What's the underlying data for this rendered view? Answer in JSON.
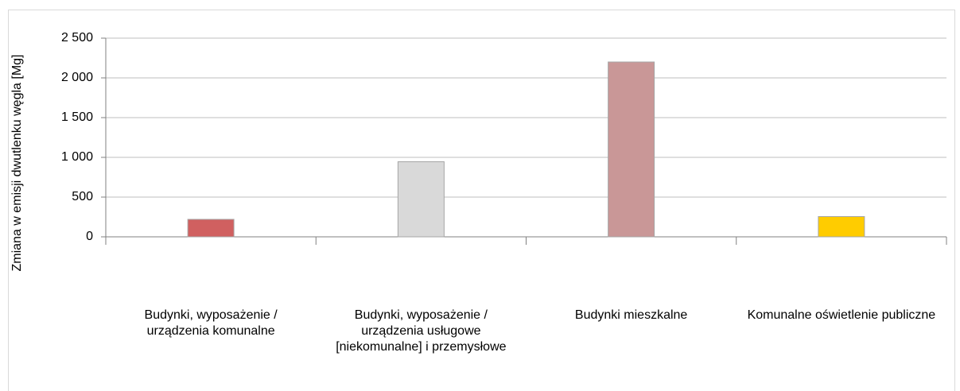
{
  "chart_data": {
    "type": "bar",
    "y_axis_label": "Zmiana w emisji dwutlenku węgla [Mg]",
    "categories": [
      "Budynki, wyposażenie / urządzenia komunalne",
      "Budynki, wyposażenie / urządzenia usługowe [niekomunalne] i przemysłowe",
      "Budynki mieszkalne",
      "Komunalne oświetlenie publiczne"
    ],
    "values": [
      220,
      945,
      2200,
      255
    ],
    "colors": [
      "#d06060",
      "#d9d9d9",
      "#c99797",
      "#ffcc00"
    ],
    "ylim": [
      0,
      2500
    ],
    "yticks": [
      0,
      500,
      {
        "value": 1000,
        "label": "1 000"
      },
      {
        "value": 1500,
        "label": "1 500"
      },
      {
        "value": 2000,
        "label": "2 000"
      },
      {
        "value": 2500,
        "label": "2 500"
      }
    ],
    "grid": true
  }
}
